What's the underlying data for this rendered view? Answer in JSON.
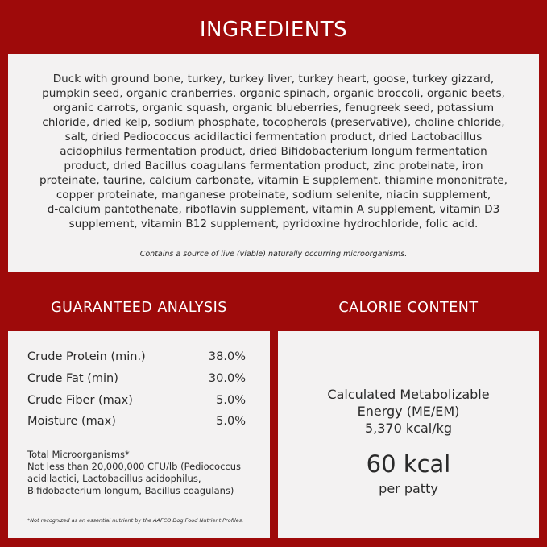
{
  "ingredients": {
    "title": "INGREDIENTS",
    "lines": [
      "Duck with ground bone, turkey, turkey liver, turkey heart, goose, turkey gizzard,",
      "pumpkin seed, organic cranberries, organic spinach, organic broccoli, organic beets,",
      "organic carrots, organic squash, organic blueberries, fenugreek seed, potassium",
      "chloride, dried kelp, sodium phosphate, tocopherols (preservative), choline chloride,",
      "salt, dried Pediococcus acidilactici fermentation product, dried Lactobacillus",
      "acidophilus fermentation product, dried Bifidobacterium longum fermentation",
      "product, dried Bacillus coagulans fermentation product, zinc proteinate, iron",
      "proteinate, taurine, calcium carbonate, vitamin E supplement, thiamine mononitrate,",
      "copper proteinate, manganese proteinate, sodium selenite, niacin supplement,",
      "d-calcium pantothenate, riboflavin supplement, vitamin A supplement, vitamin D3",
      "supplement, vitamin B12 supplement, pyridoxine hydrochloride, folic acid."
    ],
    "note": "Contains a source of live (viable) naturally occurring microorganisms."
  },
  "guaranteed_analysis": {
    "title": "GUARANTEED ANALYSIS",
    "rows": [
      {
        "label": "Crude Protein (min.)",
        "value": "38.0%"
      },
      {
        "label": "Crude Fat (min)",
        "value": "30.0%"
      },
      {
        "label": "Crude Fiber (max)",
        "value": "5.0%"
      },
      {
        "label": "Moisture (max)",
        "value": "5.0%"
      }
    ],
    "micro_lines": [
      "Total Microorganisms*",
      "Not less than 20,000,000 CFU/lb (Pediococcus",
      "acidilactici, Lactobacillus acidophilus,",
      "Bifidobacterium longum, Bacillus coagulans)"
    ],
    "footnote": "*Not recognized as an essential nutrient by the AAFCO Dog Food Nutrient Profiles."
  },
  "calorie_content": {
    "title": "CALORIE CONTENT",
    "lines": [
      "Calculated Metabolizable",
      "Energy (ME/EM)",
      "5,370 kcal/kg"
    ],
    "big": "60 kcal",
    "per": "per patty"
  },
  "colors": {
    "background": "#9e0a0a",
    "panel": "#f3f2f2"
  }
}
